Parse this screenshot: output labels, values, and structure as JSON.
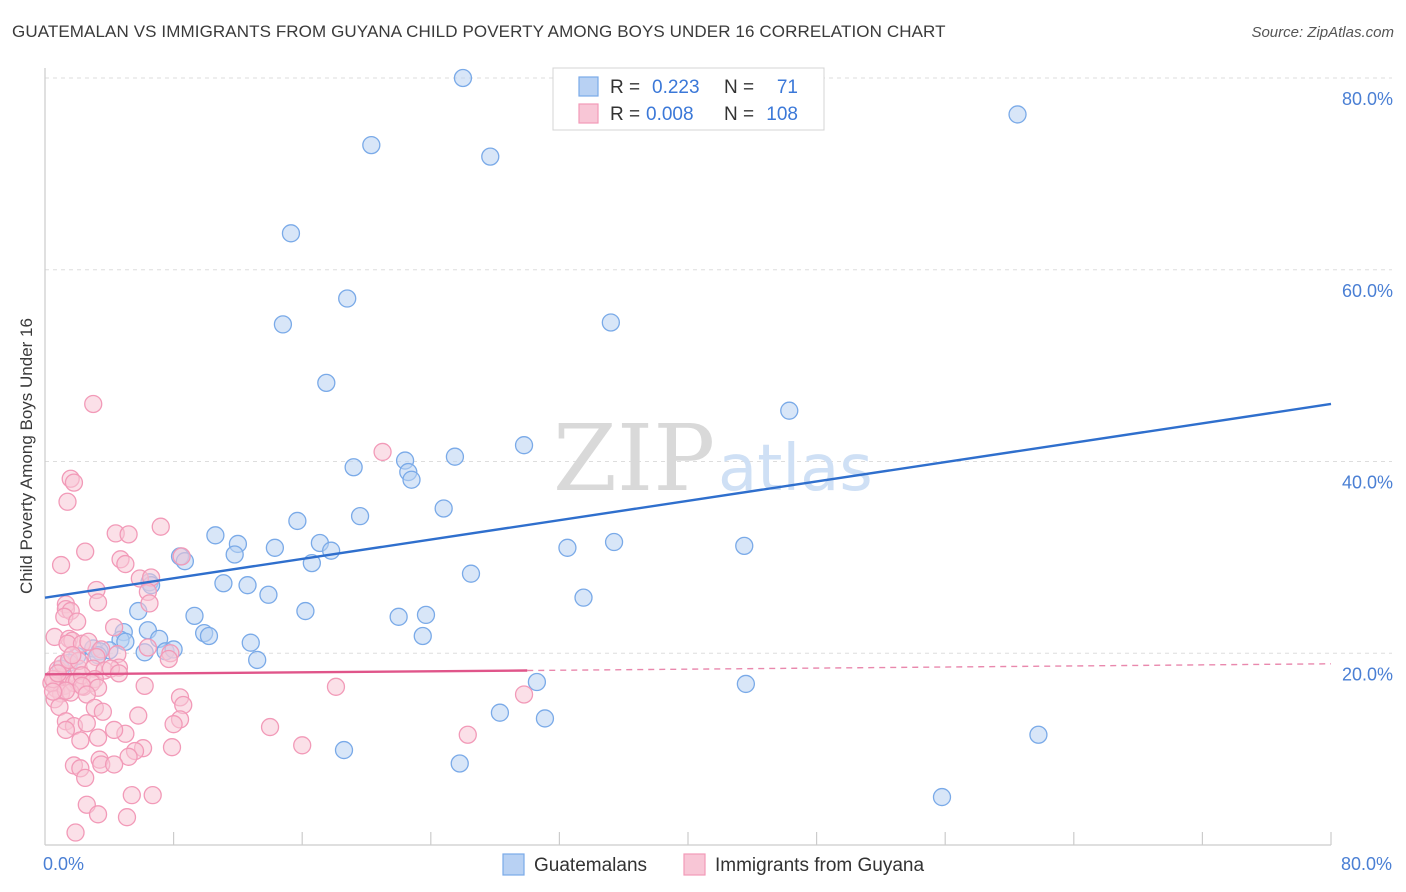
{
  "chart_data": {
    "type": "scatter",
    "title": "GUATEMALAN VS IMMIGRANTS FROM GUYANA CHILD POVERTY AMONG BOYS UNDER 16 CORRELATION CHART",
    "source": "Source: ZipAtlas.com",
    "xlabel": "",
    "ylabel": "Child Poverty Among Boys Under 16",
    "xlim": [
      0,
      80
    ],
    "ylim": [
      0,
      80
    ],
    "x_tick_labels": {
      "min": "0.0%",
      "max": "80.0%"
    },
    "y_ticks": [
      {
        "value": 20,
        "label": "20.0%"
      },
      {
        "value": 40,
        "label": "40.0%"
      },
      {
        "value": 60,
        "label": "60.0%"
      },
      {
        "value": 80,
        "label": "80.0%"
      }
    ],
    "watermark": {
      "zip": "ZIP",
      "atlas": "atlas"
    },
    "legend": {
      "rows": [
        {
          "r_label": "R =",
          "r_value": "0.223",
          "n_label": "N =",
          "n_value": "71"
        },
        {
          "r_label": "R =",
          "r_value": "0.008",
          "n_label": "N =",
          "n_value": "108"
        }
      ]
    },
    "series": [
      {
        "name": "Guatemalans",
        "color": "#7aaae8",
        "fill": "#b8d1f3",
        "line_color": "#2f6fcd",
        "trend": {
          "x0": 0,
          "y0": 25.8,
          "x1": 80,
          "y1": 46.0,
          "dashed_from": null
        },
        "points": [
          [
            26,
            80.0
          ],
          [
            60.5,
            76.2
          ],
          [
            20.3,
            73.0
          ],
          [
            27.7,
            71.8
          ],
          [
            15.3,
            63.8
          ],
          [
            18.8,
            57.0
          ],
          [
            14.8,
            54.3
          ],
          [
            35.2,
            54.5
          ],
          [
            17.5,
            48.2
          ],
          [
            46.3,
            45.3
          ],
          [
            29.8,
            41.7
          ],
          [
            25.5,
            40.5
          ],
          [
            22.4,
            40.1
          ],
          [
            19.2,
            39.4
          ],
          [
            22.6,
            38.9
          ],
          [
            22.8,
            38.1
          ],
          [
            24.8,
            35.1
          ],
          [
            19.6,
            34.3
          ],
          [
            15.7,
            33.8
          ],
          [
            10.6,
            32.3
          ],
          [
            12.0,
            31.4
          ],
          [
            17.1,
            31.5
          ],
          [
            14.3,
            31.0
          ],
          [
            17.8,
            30.7
          ],
          [
            35.4,
            31.6
          ],
          [
            32.5,
            31.0
          ],
          [
            43.5,
            31.2
          ],
          [
            11.8,
            30.3
          ],
          [
            8.4,
            30.1
          ],
          [
            8.7,
            29.6
          ],
          [
            16.6,
            29.4
          ],
          [
            26.5,
            28.3
          ],
          [
            11.1,
            27.3
          ],
          [
            12.6,
            27.1
          ],
          [
            6.5,
            27.4
          ],
          [
            6.6,
            27.1
          ],
          [
            13.9,
            26.1
          ],
          [
            33.5,
            25.8
          ],
          [
            16.2,
            24.4
          ],
          [
            5.8,
            24.4
          ],
          [
            9.3,
            23.9
          ],
          [
            22.0,
            23.8
          ],
          [
            23.7,
            24.0
          ],
          [
            6.4,
            22.4
          ],
          [
            4.9,
            22.2
          ],
          [
            9.9,
            22.1
          ],
          [
            10.2,
            21.8
          ],
          [
            23.5,
            21.8
          ],
          [
            4.7,
            21.4
          ],
          [
            7.1,
            21.5
          ],
          [
            12.8,
            21.1
          ],
          [
            5.0,
            21.2
          ],
          [
            3.0,
            20.5
          ],
          [
            4.0,
            20.3
          ],
          [
            3.4,
            20.2
          ],
          [
            6.2,
            20.1
          ],
          [
            7.5,
            20.2
          ],
          [
            8.0,
            20.4
          ],
          [
            3.3,
            19.8
          ],
          [
            13.2,
            19.3
          ],
          [
            2.0,
            19.7
          ],
          [
            1.5,
            19.0
          ],
          [
            30.6,
            17.0
          ],
          [
            43.6,
            16.8
          ],
          [
            28.3,
            13.8
          ],
          [
            31.1,
            13.2
          ],
          [
            61.8,
            11.5
          ],
          [
            18.6,
            9.9
          ],
          [
            25.8,
            8.5
          ],
          [
            55.8,
            5.0
          ],
          [
            1.0,
            18.4
          ]
        ]
      },
      {
        "name": "Immigrants from Guyana",
        "color": "#f29ab8",
        "fill": "#f8c6d6",
        "line_color": "#e0558a",
        "trend": {
          "x0": 0,
          "y0": 17.8,
          "x1": 30,
          "y1": 18.2,
          "dashed_from": 30,
          "x_end": 80,
          "y_end": 18.9
        },
        "points": [
          [
            1.2,
            16.6
          ],
          [
            0.6,
            17.0
          ],
          [
            0.9,
            17.5
          ],
          [
            0.7,
            16.3
          ],
          [
            1.0,
            15.8
          ],
          [
            0.4,
            16.9
          ],
          [
            1.4,
            17.8
          ],
          [
            0.8,
            18.3
          ],
          [
            0.5,
            17.3
          ],
          [
            1.1,
            18.9
          ],
          [
            0.6,
            15.2
          ],
          [
            1.8,
            16.9
          ],
          [
            2.0,
            17.1
          ],
          [
            2.4,
            16.5
          ],
          [
            0.9,
            14.4
          ],
          [
            1.6,
            15.9
          ],
          [
            0.8,
            17.9
          ],
          [
            1.3,
            16.1
          ],
          [
            2.1,
            18.4
          ],
          [
            1.5,
            19.3
          ],
          [
            3.0,
            46.0
          ],
          [
            1.6,
            38.2
          ],
          [
            1.8,
            37.8
          ],
          [
            1.4,
            35.8
          ],
          [
            21.0,
            41.0
          ],
          [
            7.2,
            33.2
          ],
          [
            4.4,
            32.5
          ],
          [
            5.2,
            32.4
          ],
          [
            2.5,
            30.6
          ],
          [
            1.0,
            29.2
          ],
          [
            4.7,
            29.8
          ],
          [
            8.5,
            30.1
          ],
          [
            5.0,
            29.3
          ],
          [
            5.9,
            27.8
          ],
          [
            6.6,
            27.9
          ],
          [
            3.2,
            26.6
          ],
          [
            6.4,
            26.4
          ],
          [
            3.3,
            25.3
          ],
          [
            6.5,
            25.2
          ],
          [
            1.3,
            25.1
          ],
          [
            1.3,
            24.6
          ],
          [
            1.6,
            24.4
          ],
          [
            1.2,
            23.8
          ],
          [
            2.0,
            23.3
          ],
          [
            4.3,
            22.7
          ],
          [
            0.6,
            21.7
          ],
          [
            1.5,
            21.5
          ],
          [
            1.7,
            21.3
          ],
          [
            1.4,
            21.0
          ],
          [
            2.3,
            21.0
          ],
          [
            2.7,
            21.2
          ],
          [
            6.4,
            20.6
          ],
          [
            3.5,
            20.4
          ],
          [
            7.8,
            20.0
          ],
          [
            4.5,
            19.9
          ],
          [
            3.2,
            19.6
          ],
          [
            7.7,
            19.4
          ],
          [
            2.1,
            19.2
          ],
          [
            3.0,
            18.4
          ],
          [
            4.6,
            18.5
          ],
          [
            3.7,
            18.2
          ],
          [
            4.1,
            18.4
          ],
          [
            4.6,
            17.9
          ],
          [
            2.3,
            17.7
          ],
          [
            3.1,
            17.3
          ],
          [
            2.9,
            16.9
          ],
          [
            2.3,
            16.6
          ],
          [
            3.3,
            16.4
          ],
          [
            6.2,
            16.6
          ],
          [
            18.1,
            16.5
          ],
          [
            29.8,
            15.7
          ],
          [
            8.4,
            15.4
          ],
          [
            2.6,
            15.7
          ],
          [
            3.1,
            14.3
          ],
          [
            8.6,
            14.6
          ],
          [
            3.6,
            13.9
          ],
          [
            5.8,
            13.5
          ],
          [
            8.4,
            13.1
          ],
          [
            1.3,
            12.9
          ],
          [
            1.8,
            12.4
          ],
          [
            2.6,
            12.7
          ],
          [
            8.0,
            12.6
          ],
          [
            14.0,
            12.3
          ],
          [
            1.3,
            12.0
          ],
          [
            5.0,
            11.6
          ],
          [
            4.3,
            12.0
          ],
          [
            26.3,
            11.5
          ],
          [
            3.3,
            11.2
          ],
          [
            2.2,
            10.9
          ],
          [
            6.1,
            10.1
          ],
          [
            5.6,
            9.8
          ],
          [
            7.9,
            10.2
          ],
          [
            16.0,
            10.4
          ],
          [
            5.2,
            9.2
          ],
          [
            3.4,
            8.9
          ],
          [
            3.5,
            8.4
          ],
          [
            4.3,
            8.4
          ],
          [
            1.8,
            8.3
          ],
          [
            2.2,
            8.0
          ],
          [
            2.5,
            7.0
          ],
          [
            5.4,
            5.2
          ],
          [
            6.7,
            5.2
          ],
          [
            2.6,
            4.2
          ],
          [
            3.3,
            3.2
          ],
          [
            5.1,
            2.9
          ],
          [
            1.9,
            1.3
          ],
          [
            0.5,
            16.0
          ],
          [
            1.7,
            19.8
          ]
        ]
      }
    ]
  }
}
